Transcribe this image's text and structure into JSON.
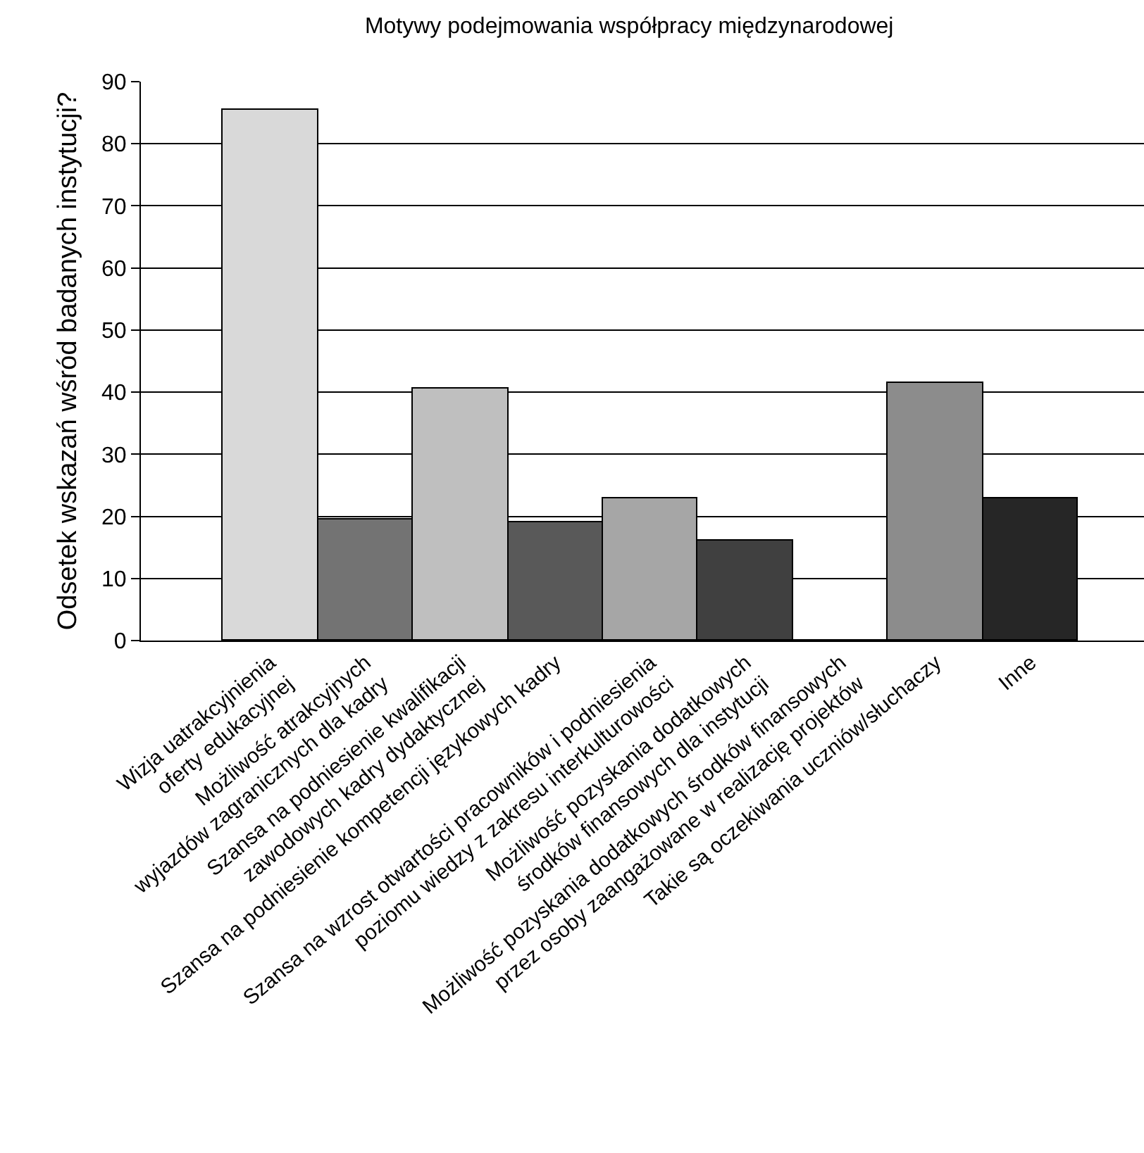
{
  "chart_data": {
    "type": "bar",
    "title": "Motywy podejmowania współpracy międzynarodowej",
    "ylabel": "Odsetek wskazań wśród badanych instytucji?",
    "categories": [
      "Wizja uatrakcyjnienia\noferty edukacyjnej",
      "Możliwość atrakcyjnych\nwyjazdów zagranicznych dla kadry",
      "Szansa na podniesienie kwalifikacji\nzawodowych kadry dydaktycznej",
      "Szansa na podniesienie kompetencji językowych kadry",
      "Szansa na wzrost otwartości pracowników i podniesienia\npoziomu wiedzy z zakresu interkulturowości",
      "Możliwość pozyskania dodatkowych\nśrodków finansowych dla instytucji",
      "Możliwość pozyskania dodatkowych środków finansowych\nprzez osoby zaangażowane w realizację projektów",
      "Takie są oczekiwania uczniów/słuchaczy",
      "Inne"
    ],
    "values": [
      85.5,
      19.5,
      40.5,
      19,
      23,
      16,
      0,
      41.5,
      23
    ],
    "colors": [
      "#d9d9d9",
      "#737373",
      "#bfbfbf",
      "#595959",
      "#a6a6a6",
      "#404040",
      "#808080",
      "#8c8c8c",
      "#262626"
    ],
    "ylim": [
      0,
      90
    ],
    "yticks": [
      0,
      10,
      20,
      30,
      40,
      50,
      60,
      70,
      80,
      90
    ],
    "grid": "y"
  }
}
